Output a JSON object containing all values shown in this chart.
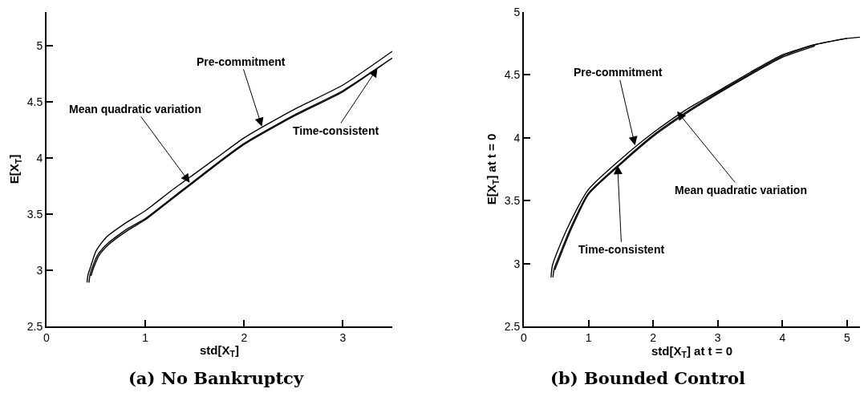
{
  "chart_data": [
    {
      "type": "line",
      "title": "(a) No Bankruptcy",
      "xlabel": "std[X$_{T}$]",
      "ylabel": "E[X$_{T}$]",
      "xlim": [
        0,
        3.5
      ],
      "xticks": [
        0,
        1,
        2,
        3
      ],
      "ylim": [
        2.5,
        5.3
      ],
      "yticks": [
        2.5,
        3,
        3.5,
        4,
        4.5,
        5
      ],
      "grid": false,
      "series": [
        {
          "color": "#000000",
          "x": [
            0.41,
            0.42,
            0.45,
            0.5,
            0.6,
            0.8,
            1,
            1.25,
            1.5,
            1.75,
            2,
            2.5,
            3,
            3.5
          ],
          "values": [
            2.89,
            2.96,
            3.04,
            3.17,
            3.29,
            3.42,
            3.53,
            3.7,
            3.86,
            4.02,
            4.18,
            4.43,
            4.65,
            4.95
          ]
        },
        {
          "color": "#000000",
          "x": [
            0.43,
            0.44,
            0.47,
            0.52,
            0.62,
            0.82,
            1,
            1.25,
            1.5,
            1.75,
            2,
            2.5,
            3,
            3.5
          ],
          "values": [
            2.89,
            2.96,
            3.04,
            3.14,
            3.24,
            3.37,
            3.46,
            3.63,
            3.8,
            3.97,
            4.13,
            4.38,
            4.6,
            4.89
          ]
        },
        {
          "color": "#000000",
          "x": [
            0.45,
            0.48,
            0.53,
            0.63,
            0.83,
            1,
            1.25,
            1.5,
            1.75,
            2,
            2.5,
            3,
            3.4
          ],
          "values": [
            2.95,
            3.03,
            3.13,
            3.23,
            3.36,
            3.45,
            3.62,
            3.79,
            3.96,
            4.12,
            4.37,
            4.59,
            4.83
          ]
        }
      ],
      "annotations": [
        {
          "text": "Pre-commitment",
          "x": 2.18,
          "y": 4.28
        },
        {
          "text": "Mean quadratic variation",
          "x": 1.45,
          "y": 3.78
        },
        {
          "text": "Time-consistent",
          "x": 3.35,
          "y": 4.8
        }
      ]
    },
    {
      "type": "line",
      "title": "(b) Bounded Control",
      "xlabel": "std[X$_{T}$] at t = 0",
      "ylabel": "E[X$_{T}$] at t = 0",
      "xlim": [
        0,
        5.2
      ],
      "xticks": [
        0,
        1,
        2,
        3,
        4,
        5
      ],
      "ylim": [
        2.5,
        5
      ],
      "yticks": [
        2.5,
        3,
        3.5,
        4,
        4.5,
        5
      ],
      "grid": false,
      "series": [
        {
          "color": "#000000",
          "x": [
            0.42,
            0.44,
            0.5,
            0.7,
            1,
            1.5,
            2,
            2.5,
            3,
            3.5,
            4,
            4.5,
            5,
            5.2
          ],
          "values": [
            2.89,
            2.98,
            3.07,
            3.31,
            3.59,
            3.83,
            4.04,
            4.22,
            4.37,
            4.52,
            4.66,
            4.74,
            4.79,
            4.8
          ]
        },
        {
          "color": "#000000",
          "x": [
            0.45,
            0.47,
            0.53,
            0.72,
            1,
            1.5,
            2,
            2.5,
            3,
            3.5,
            4,
            4.5,
            5
          ],
          "values": [
            2.89,
            2.96,
            3.04,
            3.28,
            3.56,
            3.8,
            4.02,
            4.2,
            4.36,
            4.51,
            4.65,
            4.74,
            4.79
          ]
        },
        {
          "color": "#000000",
          "x": [
            0.48,
            0.54,
            0.73,
            1,
            1.5,
            2,
            2.5,
            3,
            3.5,
            4,
            4.5
          ],
          "values": [
            2.95,
            3.03,
            3.27,
            3.55,
            3.79,
            4.01,
            4.19,
            4.35,
            4.5,
            4.64,
            4.73
          ]
        }
      ],
      "annotations": [
        {
          "text": "Pre-commitment",
          "x": 1.72,
          "y": 3.94
        },
        {
          "text": "Time-consistent",
          "x": 1.45,
          "y": 3.78
        },
        {
          "text": "Mean quadratic variation",
          "x": 2.37,
          "y": 4.21
        }
      ]
    }
  ]
}
